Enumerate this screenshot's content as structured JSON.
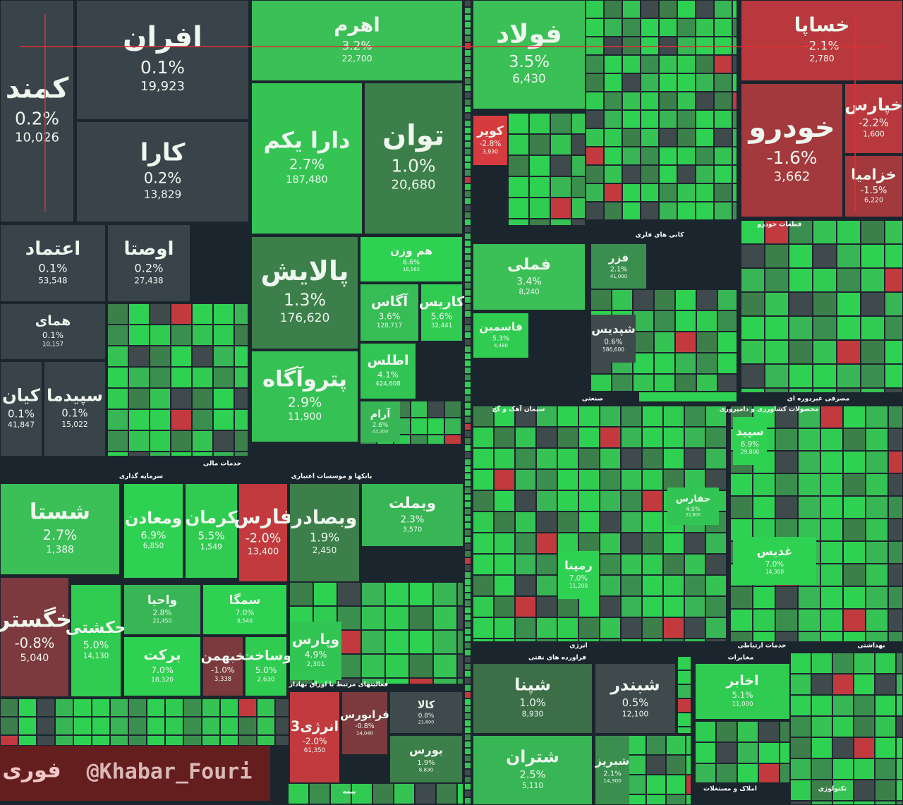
{
  "chart_data": {
    "type": "treemap",
    "tiles": [
      {
        "name": "افران",
        "change": 0.1,
        "change_label": "0.1%",
        "value": 19923,
        "value_label": "19,923",
        "color": "#39434a"
      },
      {
        "name": "کمند",
        "change": 0.2,
        "change_label": "0.2%",
        "value": 10026,
        "value_label": "10,026",
        "color": "#39434a"
      },
      {
        "name": "کارا",
        "change": 0.2,
        "change_label": "0.2%",
        "value": 13829,
        "value_label": "13,829",
        "color": "#39434a"
      },
      {
        "name": "اعتماد",
        "change": 0.1,
        "change_label": "0.1%",
        "value": 53548,
        "value_label": "53,548",
        "color": "#39434a"
      },
      {
        "name": "اوصتا",
        "change": 0.2,
        "change_label": "0.2%",
        "value": 27438,
        "value_label": "27,438",
        "color": "#39434a"
      },
      {
        "name": "همای",
        "change": 0.1,
        "change_label": "0.1%",
        "value": 10157,
        "value_label": "10,157",
        "color": "#39434a"
      },
      {
        "name": "کیان",
        "change": 0.1,
        "change_label": "0.1%",
        "value": 41847,
        "value_label": "41,847",
        "color": "#39434a"
      },
      {
        "name": "سپیدما",
        "change": 0.1,
        "change_label": "0.1%",
        "value": 15022,
        "value_label": "15,022",
        "color": "#39434a"
      },
      {
        "name": "اهرم",
        "change": 3.2,
        "change_label": "3.2%",
        "value": 22700,
        "value_label": "22,700",
        "color": "#3bbf57"
      },
      {
        "name": "دارا یکم",
        "change": 2.7,
        "change_label": "2.7%",
        "value": 187480,
        "value_label": "187,480",
        "color": "#35c453"
      },
      {
        "name": "توان",
        "change": 1.0,
        "change_label": "1.0%",
        "value": 20680,
        "value_label": "20,680",
        "color": "#3c7f4a"
      },
      {
        "name": "پالایش",
        "change": 1.3,
        "change_label": "1.3%",
        "value": 176620,
        "value_label": "176,620",
        "color": "#3c7f4a"
      },
      {
        "name": "هم وزن",
        "change": 6.6,
        "change_label": "6.6%",
        "value": 16565,
        "value_label": "16,565",
        "color": "#2fd152"
      },
      {
        "name": "آگاس",
        "change": 3.6,
        "change_label": "3.6%",
        "value": 128717,
        "value_label": "128,717",
        "color": "#36bd55"
      },
      {
        "name": "کاریس",
        "change": 5.6,
        "change_label": "5.6%",
        "value": 32441,
        "value_label": "32,441",
        "color": "#30cc52"
      },
      {
        "name": "پتروآگاه",
        "change": 2.9,
        "change_label": "2.9%",
        "value": 11900,
        "value_label": "11,900",
        "color": "#36c155"
      },
      {
        "name": "اطلس",
        "change": 4.1,
        "change_label": "4.1%",
        "value": 424608,
        "value_label": "424,608",
        "color": "#33c554"
      },
      {
        "name": "آرام",
        "change": 2.6,
        "change_label": "2.6%",
        "value": 43200,
        "value_label": "43,200",
        "color": "#38b655"
      },
      {
        "name": "فولاد",
        "change": 3.5,
        "change_label": "3.5%",
        "value": 6430,
        "value_label": "6,430",
        "color": "#3bbf57"
      },
      {
        "name": "خساپا",
        "change": -2.1,
        "change_label": "-2.1%",
        "value": 2780,
        "value_label": "2,780",
        "color": "#b8383d"
      },
      {
        "name": "خودرو",
        "change": -1.6,
        "change_label": "-1.6%",
        "value": 3662,
        "value_label": "3,662",
        "color": "#a3383d"
      },
      {
        "name": "خپارس",
        "change": -2.2,
        "change_label": "-2.2%",
        "value": 1600,
        "value_label": "1,600",
        "color": "#b8383d"
      },
      {
        "name": "خزامیا",
        "change": -1.5,
        "change_label": "-1.5%",
        "value": 6220,
        "value_label": "6,220",
        "color": "#a3383d"
      },
      {
        "name": "کویر",
        "change": -2.8,
        "change_label": "-2.8%",
        "value": 3930,
        "value_label": "3,930",
        "color": "#d63c3f"
      },
      {
        "name": "فملی",
        "change": 3.4,
        "change_label": "3.4%",
        "value": 8240,
        "value_label": "8,240",
        "color": "#3bbf57"
      },
      {
        "name": "فزر",
        "change": 2.1,
        "change_label": "2.1%",
        "value": 41000,
        "value_label": "41,000",
        "color": "#3a8f4e"
      },
      {
        "name": "فاسمین",
        "change": 5.3,
        "change_label": "5.3%",
        "value": 4480,
        "value_label": "4,480",
        "color": "#30cc52"
      },
      {
        "name": "شپدیس",
        "change": 0.6,
        "change_label": "0.6%",
        "value": 586600,
        "value_label": "586,600",
        "color": "#3e4a4c"
      },
      {
        "name": "شستا",
        "change": 2.7,
        "change_label": "2.7%",
        "value": 1388,
        "value_label": "1,388",
        "color": "#3bbf57"
      },
      {
        "name": "ومعادن",
        "change": 6.9,
        "change_label": "6.9%",
        "value": 6850,
        "value_label": "6,850",
        "color": "#2fd152"
      },
      {
        "name": "کرمان",
        "change": 5.5,
        "change_label": "5.5%",
        "value": 1549,
        "value_label": "1,549",
        "color": "#30cc52"
      },
      {
        "name": "فارس",
        "change": -2.0,
        "change_label": "-2.0%",
        "value": 13400,
        "value_label": "13,400",
        "color": "#c23a3e"
      },
      {
        "name": "وبصادر",
        "change": 1.9,
        "change_label": "1.9%",
        "value": 2450,
        "value_label": "2,450",
        "color": "#3c7f4a"
      },
      {
        "name": "وبملت",
        "change": 2.3,
        "change_label": "2.3%",
        "value": 3570,
        "value_label": "3,570",
        "color": "#38b655"
      },
      {
        "name": "خگستر",
        "change": -0.8,
        "change_label": "-0.8%",
        "value": 5040,
        "value_label": "5,040",
        "color": "#7c3a3e"
      },
      {
        "name": "حکشتی",
        "change": 5.0,
        "change_label": "5.0%",
        "value": 14130,
        "value_label": "14,130",
        "color": "#30cc52"
      },
      {
        "name": "واحیا",
        "change": 2.8,
        "change_label": "2.8%",
        "value": 21450,
        "value_label": "21,450",
        "color": "#38b655"
      },
      {
        "name": "سمگا",
        "change": 7.0,
        "change_label": "7.0%",
        "value": 9540,
        "value_label": "9,540",
        "color": "#2fd152"
      },
      {
        "name": "برکت",
        "change": 7.0,
        "change_label": "7.0%",
        "value": 18320,
        "value_label": "18,320",
        "color": "#2fd152"
      },
      {
        "name": "خبهمن",
        "change": -1.0,
        "change_label": "-1.0%",
        "value": 3338,
        "value_label": "3,338",
        "color": "#7c3a3e"
      },
      {
        "name": "وساخت",
        "change": 5.0,
        "change_label": "5.0%",
        "value": 2630,
        "value_label": "2,630",
        "color": "#30cc52"
      },
      {
        "name": "وپارس",
        "change": 4.9,
        "change_label": "4.9%",
        "value": 2301,
        "value_label": "2,301",
        "color": "#33c554"
      },
      {
        "name": "شپنا",
        "change": 1.0,
        "change_label": "1.0%",
        "value": 8930,
        "value_label": "8,930",
        "color": "#3c6e48"
      },
      {
        "name": "شبندر",
        "change": 0.5,
        "change_label": "0.5%",
        "value": 12100,
        "value_label": "12,100",
        "color": "#3e4a4c"
      },
      {
        "name": "شتران",
        "change": 2.5,
        "change_label": "2.5%",
        "value": 5110,
        "value_label": "5,110",
        "color": "#38b655"
      },
      {
        "name": "شبریز",
        "change": 2.1,
        "change_label": "2.1%",
        "value": 14300,
        "value_label": "14,300",
        "color": "#3a8f4e"
      },
      {
        "name": "اخابر",
        "change": 5.1,
        "change_label": "5.1%",
        "value": 11000,
        "value_label": "11,000",
        "color": "#30cc52"
      },
      {
        "name": "انرژی3",
        "change": -2.0,
        "change_label": "-2.0%",
        "value": 61350,
        "value_label": "61,350",
        "color": "#c23a3e"
      },
      {
        "name": "فرابورس",
        "change": -0.8,
        "change_label": "-0.8%",
        "value": 14040,
        "value_label": "14,040",
        "color": "#7c3a3e"
      },
      {
        "name": "کالا",
        "change": 0.8,
        "change_label": "0.8%",
        "value": 21600,
        "value_label": "21,600",
        "color": "#3e4a4c"
      },
      {
        "name": "بورس",
        "change": 1.9,
        "change_label": "1.9%",
        "value": 8830,
        "value_label": "8,830",
        "color": "#3c7f4a"
      },
      {
        "name": "غدیس",
        "change": 7.0,
        "change_label": "7.0%",
        "value": 14300,
        "value_label": "14,300",
        "color": "#2fd152"
      },
      {
        "name": "رمپنا",
        "change": 7.0,
        "change_label": "7.0%",
        "value": 11200,
        "value_label": "11,200",
        "color": "#2fd152"
      },
      {
        "name": "حفارس",
        "change": 4.9,
        "change_label": "4.9%",
        "value": 21800,
        "value_label": "21,800",
        "color": "#33c554"
      },
      {
        "name": "سپید",
        "change": 6.9,
        "change_label": "6.9%",
        "value": 29800,
        "value_label": "29,800",
        "color": "#2fd152"
      }
    ],
    "sectors": [
      "خدمات مالی",
      "صنعتی",
      "انرژی",
      "خدمات ارتباطی",
      "مصرفی غیردوره ای",
      "بهداشتی",
      "سرمایه گذاری",
      "بانکها و موسسات اعتباری",
      "فعالیتهای مرتبط با اوراق بهادار",
      "فراورده های نفتی",
      "مخابرات",
      "تکنولوژی",
      "املاک و مستغلات",
      "بیمه",
      "قطعات خودرو",
      "کانی های فلزی",
      "سیمان آهک و گچ",
      "محصولات کشاورزی و دامپروری"
    ]
  },
  "watermark": {
    "handle": "@Khabar_Fouri",
    "brand": "فوری"
  }
}
